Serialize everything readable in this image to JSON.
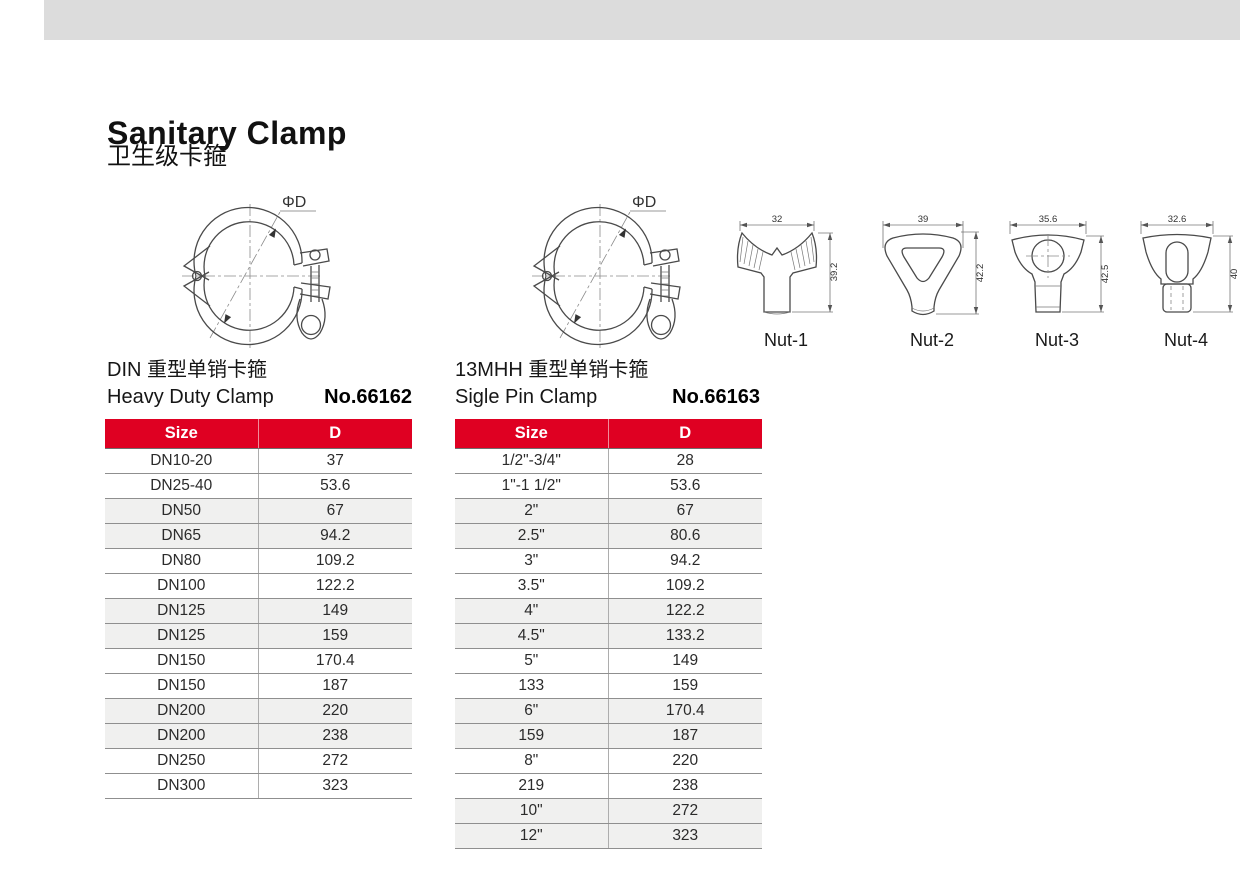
{
  "page": {
    "title": "Sanitary Clamp",
    "subtitle_cn": "卫生级卡箍"
  },
  "colors": {
    "accent_red": "#df0022",
    "row_alt": "#f0f0ef",
    "top_bar": "#dcdcdc"
  },
  "drawings": {
    "clamp1": {
      "dim_label": "ΦD"
    },
    "clamp2": {
      "dim_label": "ΦD"
    },
    "nuts": [
      {
        "label": "Nut-1",
        "width_dim": "32",
        "height_dim": "39.2"
      },
      {
        "label": "Nut-2",
        "width_dim": "39",
        "height_dim": "42.2"
      },
      {
        "label": "Nut-3",
        "width_dim": "35.6",
        "height_dim": "42.5"
      },
      {
        "label": "Nut-4",
        "width_dim": "32.6",
        "height_dim": "40"
      }
    ]
  },
  "products": [
    {
      "name_cn": "DIN 重型单销卡箍",
      "name_en": "Heavy Duty Clamp",
      "model_no": "No.66162",
      "table": {
        "headers": [
          "Size",
          "D"
        ],
        "rows": [
          [
            "DN10-20",
            "37"
          ],
          [
            "DN25-40",
            "53.6"
          ],
          [
            "DN50",
            "67"
          ],
          [
            "DN65",
            "94.2"
          ],
          [
            "DN80",
            "109.2"
          ],
          [
            "DN100",
            "122.2"
          ],
          [
            "DN125",
            "149"
          ],
          [
            "DN125",
            "159"
          ],
          [
            "DN150",
            "170.4"
          ],
          [
            "DN150",
            "187"
          ],
          [
            "DN200",
            "220"
          ],
          [
            "DN200",
            "238"
          ],
          [
            "DN250",
            "272"
          ],
          [
            "DN300",
            "323"
          ]
        ]
      }
    },
    {
      "name_cn": "13MHH 重型单销卡箍",
      "name_en": "Sigle Pin Clamp",
      "model_no": "No.66163",
      "table": {
        "headers": [
          "Size",
          "D"
        ],
        "rows": [
          [
            "1/2\"-3/4\"",
            "28"
          ],
          [
            "1\"-1 1/2\"",
            "53.6"
          ],
          [
            "2\"",
            "67"
          ],
          [
            "2.5\"",
            "80.6"
          ],
          [
            "3\"",
            "94.2"
          ],
          [
            "3.5\"",
            "109.2"
          ],
          [
            "4\"",
            "122.2"
          ],
          [
            "4.5\"",
            "133.2"
          ],
          [
            "5\"",
            "149"
          ],
          [
            "133",
            "159"
          ],
          [
            "6\"",
            "170.4"
          ],
          [
            "159",
            "187"
          ],
          [
            "8\"",
            "220"
          ],
          [
            "219",
            "238"
          ],
          [
            "10\"",
            "272"
          ],
          [
            "12\"",
            "323"
          ]
        ]
      }
    }
  ]
}
